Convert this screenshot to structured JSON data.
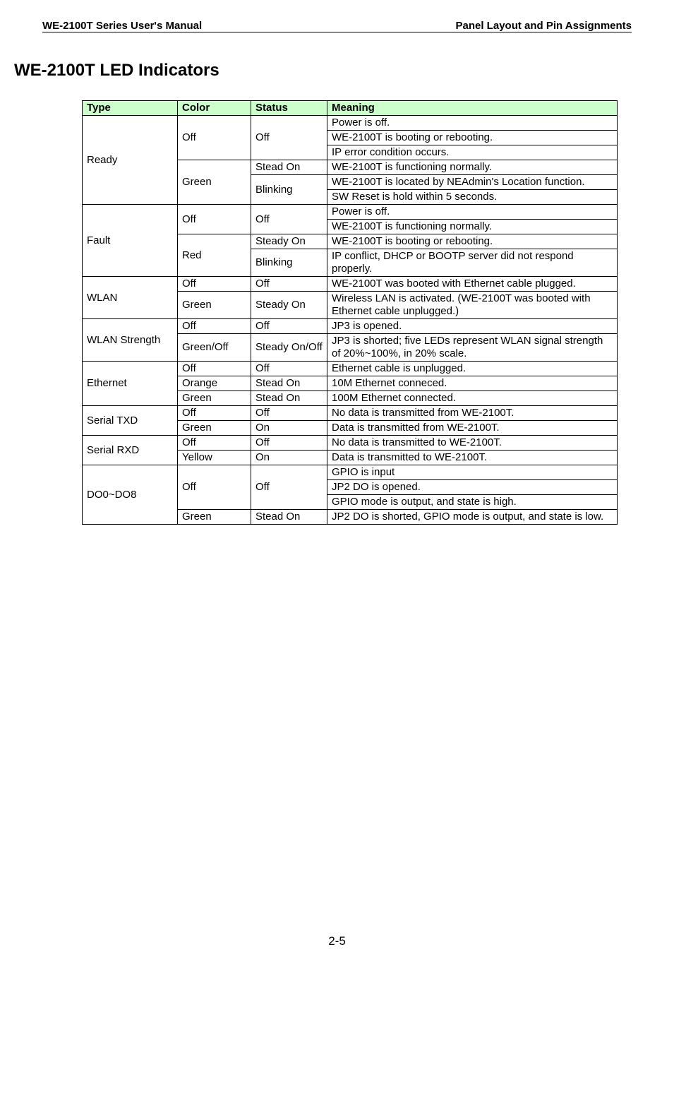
{
  "header": {
    "left": "WE-2100T Series User's Manual",
    "right": "Panel Layout and Pin Assignments"
  },
  "page_title": "WE-2100T LED Indicators",
  "table": {
    "header_bg": "#ccffcc",
    "columns": [
      "Type",
      "Color",
      "Status",
      "Meaning"
    ],
    "rows": [
      {
        "type": "Ready",
        "type_rowspan": 6,
        "color": "Off",
        "color_rowspan": 3,
        "status": "Off",
        "status_rowspan": 3,
        "meaning": "Power is off."
      },
      {
        "meaning": "WE-2100T is booting or rebooting."
      },
      {
        "meaning": "IP error condition occurs."
      },
      {
        "color": "Green",
        "color_rowspan": 3,
        "status": "Stead On",
        "meaning": "WE-2100T is functioning normally."
      },
      {
        "status": "Blinking",
        "status_rowspan": 2,
        "meaning": "WE-2100T is located by NEAdmin's Location function."
      },
      {
        "meaning": "SW Reset is hold within 5 seconds."
      },
      {
        "type": "Fault",
        "type_rowspan": 4,
        "color": "Off",
        "color_rowspan": 2,
        "status": "Off",
        "status_rowspan": 2,
        "meaning": "Power is off."
      },
      {
        "meaning": "WE-2100T is functioning normally."
      },
      {
        "color": "Red",
        "color_rowspan": 2,
        "status": "Steady On",
        "meaning": "WE-2100T is booting or rebooting."
      },
      {
        "status": "Blinking",
        "meaning": "IP conflict, DHCP or BOOTP server did not respond properly."
      },
      {
        "type": "WLAN",
        "type_rowspan": 2,
        "color": "Off",
        "status": "Off",
        "meaning": "WE-2100T was booted with Ethernet cable plugged."
      },
      {
        "color": "Green",
        "status": "Steady On",
        "meaning": "Wireless LAN is activated. (WE-2100T was booted with Ethernet cable unplugged.)"
      },
      {
        "type": "WLAN Strength",
        "type_rowspan": 2,
        "color": "Off",
        "status": "Off",
        "meaning": "JP3 is opened."
      },
      {
        "color": "Green/Off",
        "status": "Steady On/Off",
        "meaning": "JP3 is shorted; five LEDs represent WLAN signal strength of 20%~100%, in 20% scale."
      },
      {
        "type": "Ethernet",
        "type_rowspan": 3,
        "color": "Off",
        "status": "Off",
        "meaning": "Ethernet cable is unplugged."
      },
      {
        "color": "Orange",
        "status": "Stead On",
        "meaning": "10M Ethernet conneced."
      },
      {
        "color": "Green",
        "status": "Stead On",
        "meaning": "100M Ethernet connected."
      },
      {
        "type": "Serial TXD",
        "type_rowspan": 2,
        "color": "Off",
        "status": "Off",
        "meaning": "No data is transmitted from WE-2100T."
      },
      {
        "color": "Green",
        "status": "On",
        "meaning": "Data is transmitted from WE-2100T."
      },
      {
        "type": "Serial RXD",
        "type_rowspan": 2,
        "color": "Off",
        "status": "Off",
        "meaning": "No data is transmitted to WE-2100T."
      },
      {
        "color": "Yellow",
        "status": "On",
        "meaning": "Data is transmitted to WE-2100T."
      },
      {
        "type": "DO0~DO8",
        "type_rowspan": 4,
        "color": "Off",
        "color_rowspan": 3,
        "status": "Off",
        "status_rowspan": 3,
        "meaning": "GPIO is input"
      },
      {
        "meaning": "JP2 DO is opened."
      },
      {
        "meaning": "GPIO mode is output, and state is high."
      },
      {
        "color": "Green",
        "status": "Stead On",
        "meaning": "JP2 DO is shorted, GPIO mode is output, and state is low."
      }
    ]
  },
  "page_number": "2-5"
}
